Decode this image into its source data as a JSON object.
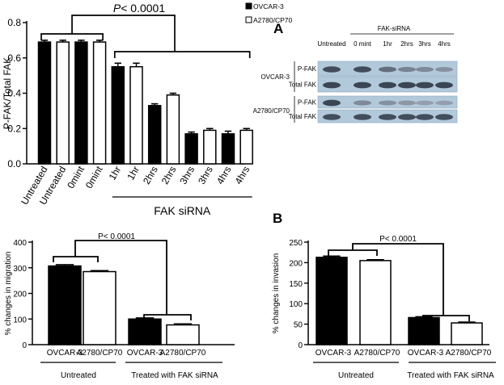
{
  "chart_data": [
    {
      "type": "bar",
      "ylabel": "P-FAK/Total FAK",
      "ylim": [
        0,
        0.8
      ],
      "yticks": [
        "0.0",
        "0.2",
        "0.4",
        "0.6",
        "0.8"
      ],
      "categories": [
        "Untreated",
        "Untreated",
        "0mint",
        "0mint",
        "1hr",
        "1hr",
        "2hrs",
        "2hrs",
        "3hrs",
        "3hrs",
        "4hrs",
        "4hrs"
      ],
      "values": [
        0.69,
        0.69,
        0.69,
        0.69,
        0.55,
        0.55,
        0.33,
        0.39,
        0.17,
        0.19,
        0.17,
        0.19
      ],
      "errors": [
        0.01,
        0.01,
        0.01,
        0.01,
        0.02,
        0.02,
        0.01,
        0.01,
        0.01,
        0.01,
        0.015,
        0.01
      ],
      "fills": [
        "#000000",
        "#ffffff",
        "#000000",
        "#ffffff",
        "#000000",
        "#ffffff",
        "#000000",
        "#ffffff",
        "#000000",
        "#ffffff",
        "#000000",
        "#ffffff"
      ],
      "legend": [
        {
          "name": "OVCAR-3",
          "color": "#000000"
        },
        {
          "name": "A2780/CP70",
          "color": "#ffffff"
        }
      ],
      "significance": "P< 0.0001",
      "group_label": "FAK siRNA"
    },
    {
      "type": "bar",
      "ylabel": "% changes in migration",
      "ylim": [
        0,
        400
      ],
      "yticks": [
        "0",
        "100",
        "200",
        "300",
        "400"
      ],
      "categories": [
        "OVCAR-3",
        "A2780/CP70",
        "OVCAR-3",
        "A2780/CP70"
      ],
      "values": [
        307,
        285,
        100,
        77
      ],
      "errors": [
        5,
        4,
        4,
        4
      ],
      "fills": [
        "#000000",
        "#ffffff",
        "#000000",
        "#ffffff"
      ],
      "significance": "P< 0.0001",
      "groups": [
        "Untreated",
        "Treated with FAK siRNA"
      ]
    },
    {
      "type": "bar",
      "panel": "B",
      "ylabel": "% changes in invasion",
      "ylim": [
        0,
        250
      ],
      "yticks": [
        "0",
        "50",
        "100",
        "150",
        "200",
        "250"
      ],
      "categories": [
        "OVCAR-3",
        "A2780/CP70",
        "OVCAR-3",
        "A2780/CP70"
      ],
      "values": [
        213,
        205,
        66,
        53
      ],
      "errors": [
        3,
        2,
        2,
        2
      ],
      "fills": [
        "#000000",
        "#ffffff",
        "#000000",
        "#ffffff"
      ],
      "significance": "P< 0.0001",
      "groups": [
        "Untreated",
        "Treated with FAK siRNA"
      ]
    }
  ],
  "western_blot": {
    "panel": "A",
    "header": "FAK-siRNA",
    "lanes": [
      "Untreated",
      "0 mint",
      "1hr",
      "2hrs",
      "3hrs",
      "4hrs"
    ],
    "cell_lines": [
      "OVCAR-3",
      "A2780/CP70"
    ],
    "rows": [
      "P-FAK",
      "Total FAK",
      "P-FAK",
      "Total FAK"
    ],
    "band_intensity": [
      [
        0.85,
        0.85,
        0.6,
        0.45,
        0.4,
        0.35
      ],
      [
        0.9,
        0.9,
        0.9,
        0.9,
        0.9,
        0.9
      ],
      [
        0.9,
        0.4,
        0.35,
        0.3,
        0.25,
        0.25
      ],
      [
        0.85,
        0.85,
        0.85,
        0.85,
        0.85,
        0.85
      ]
    ]
  }
}
